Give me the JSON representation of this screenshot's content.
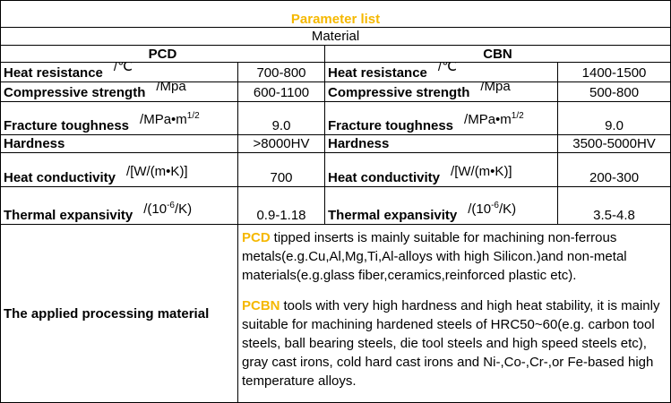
{
  "header": {
    "title": "Parameter list",
    "material": "Material",
    "groups": [
      "PCD",
      "CBN"
    ]
  },
  "rows": [
    {
      "pcd": {
        "label": "Heat resistance",
        "unit": [
          {
            "text": "/℃"
          }
        ],
        "value": "700-800"
      },
      "cbn": {
        "label": "Heat resistance",
        "unit": [
          {
            "text": "/℃"
          }
        ],
        "value": "1400-1500"
      }
    },
    {
      "pcd": {
        "label": "Compressive strength",
        "unit": [
          {
            "text": "/Mpa"
          }
        ],
        "value": "600-1100"
      },
      "cbn": {
        "label": "Compressive strength",
        "unit": [
          {
            "text": "/Mpa"
          }
        ],
        "value": "500-800"
      }
    },
    {
      "pcd": {
        "label": "Fracture toughness",
        "unit": [
          {
            "text": "/MPa•m"
          },
          {
            "sup": "1/2"
          }
        ],
        "value": "9.0"
      },
      "cbn": {
        "label": "Fracture toughness",
        "unit": [
          {
            "text": "/MPa•m"
          },
          {
            "sup": "1/2"
          }
        ],
        "value": "9.0"
      }
    },
    {
      "pcd": {
        "label": "Hardness",
        "value": ">8000HV"
      },
      "cbn": {
        "label": "Hardness",
        "value": "3500-5000HV"
      }
    },
    {
      "pcd": {
        "label": "Heat conductivity",
        "unit": [
          {
            "text": "/[W/(m•K)]"
          }
        ],
        "value": "700"
      },
      "cbn": {
        "label": "Heat conductivity",
        "unit": [
          {
            "text": "/[W/(m•K)]"
          }
        ],
        "value": "200-300"
      }
    },
    {
      "pcd": {
        "label": "Thermal expansivity",
        "unit": [
          {
            "text": "/(10"
          },
          {
            "sup": "-6"
          },
          {
            "text": "/K)"
          }
        ],
        "value": "0.9-1.18"
      },
      "cbn": {
        "label": "Thermal expansivity",
        "unit": [
          {
            "text": "/(10"
          },
          {
            "sup": "-6"
          },
          {
            "text": "/K)"
          }
        ],
        "value": "3.5-4.8"
      }
    }
  ],
  "applied": {
    "label": "The applied processing material",
    "paragraphs": [
      {
        "highlight": "PCD",
        "text": "tipped inserts is mainly suitable for machining non-ferrous metals(e.g.Cu,Al,Mg,Ti,Al-alloys with high Silicon.)and non-metal materials(e.g.glass fiber,ceramics,reinforced plastic etc)."
      },
      {
        "highlight": "PCBN",
        "text": "tools with very high hardness and high heat stability, it is mainly suitable for machining hardened steels of HRC50~60(e.g. carbon tool steels, ball bearing steels, die tool steels and high speed steels etc), gray cast irons, cold hard cast irons and Ni-,Co-,Cr-,or Fe-based high temperature alloys."
      }
    ]
  }
}
